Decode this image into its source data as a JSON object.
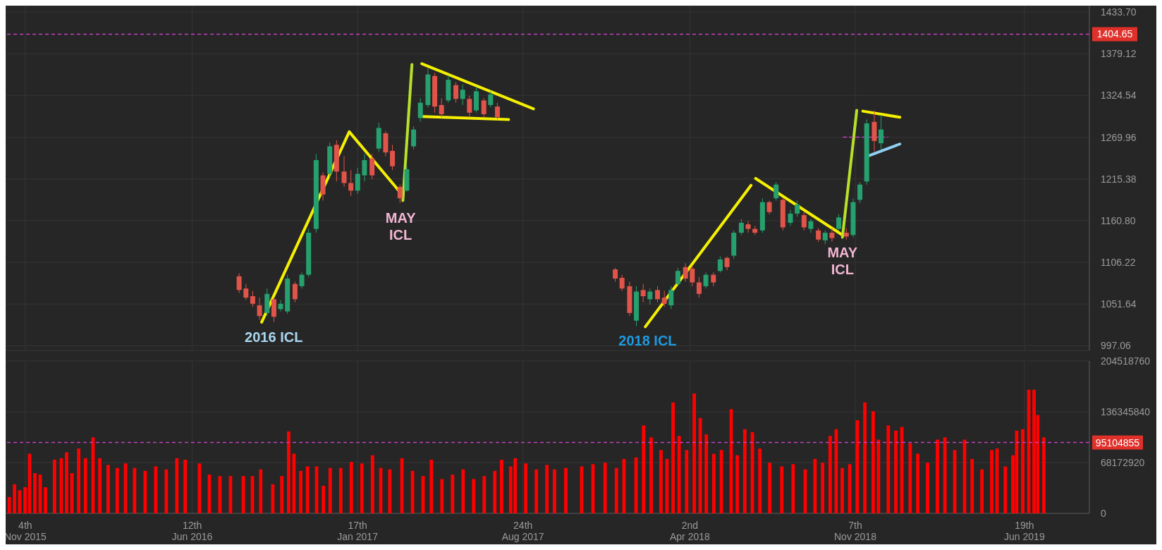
{
  "chart_data": [
    {
      "type": "candlestick",
      "tick_labels": "y",
      "grid": true,
      "marker": "none",
      "xlim": [
        "2015-10-09",
        "2019-09-13"
      ],
      "xticks": [
        {
          "value": "2015-11-04",
          "label": null
        },
        {
          "value": "2016-06-12",
          "label": null
        },
        {
          "value": "2017-01-17",
          "label": null
        },
        {
          "value": "2017-08-24",
          "label": null
        },
        {
          "value": "2018-04-02",
          "label": null
        },
        {
          "value": "2018-11-07",
          "label": null
        },
        {
          "value": "2019-06-19",
          "label": null
        }
      ],
      "ylim": [
        991,
        1442
      ],
      "yticks": [
        997.06,
        1051.64,
        1106.22,
        {
          "value": 1160.8,
          "label": "1160.80"
        },
        1215.38,
        1269.96,
        1324.54,
        1379.12,
        {
          "value": 1433.7,
          "label": "1433.70"
        }
      ],
      "x": [
        "2016-08-13",
        "2016-08-22",
        "2016-08-31",
        "2016-09-09",
        "2016-09-19",
        "2016-09-28",
        "2016-10-07",
        "2016-10-16",
        "2016-10-26",
        "2016-11-04",
        "2016-11-13",
        "2016-11-23",
        "2016-12-02",
        "2016-12-11",
        "2016-12-20",
        "2016-12-30",
        "2017-01-08",
        "2017-01-17",
        "2017-01-26",
        "2017-02-05",
        "2017-02-14",
        "2017-02-23",
        "2017-03-04",
        "2017-03-14",
        "2017-03-23",
        "2017-04-01",
        "2017-04-10",
        "2017-04-20",
        "2017-04-29",
        "2017-05-08",
        "2017-05-17",
        "2017-05-27",
        "2017-06-05",
        "2017-06-14",
        "2017-06-23",
        "2017-07-03",
        "2017-07-12",
        "2017-07-21",
        "2017-12-24",
        "2018-01-02",
        "2018-01-12",
        "2018-01-21",
        "2018-01-30",
        "2018-02-08",
        "2018-02-18",
        "2018-02-27",
        "2018-03-08",
        "2018-03-17",
        "2018-03-27",
        "2018-04-05",
        "2018-04-14",
        "2018-04-23",
        "2018-05-03",
        "2018-05-12",
        "2018-05-21",
        "2018-05-30",
        "2018-06-09",
        "2018-06-18",
        "2018-06-27",
        "2018-07-07",
        "2018-07-16",
        "2018-07-25",
        "2018-08-03",
        "2018-08-13",
        "2018-08-22",
        "2018-08-31",
        "2018-09-09",
        "2018-09-19",
        "2018-09-28",
        "2018-10-07",
        "2018-10-16",
        "2018-10-26",
        "2018-11-04",
        "2018-11-13",
        "2018-11-22",
        "2018-12-02",
        "2018-12-11"
      ],
      "ohlc": [
        [
          1088,
          1092,
          1066,
          1070
        ],
        [
          1072,
          1078,
          1057,
          1060
        ],
        [
          1062,
          1069,
          1048,
          1052
        ],
        [
          1050,
          1060,
          1031,
          1036
        ],
        [
          1040,
          1072,
          1036,
          1065
        ],
        [
          1058,
          1060,
          1028,
          1035
        ],
        [
          1045,
          1057,
          1042,
          1052
        ],
        [
          1042,
          1090,
          1039,
          1085
        ],
        [
          1078,
          1081,
          1054,
          1058
        ],
        [
          1075,
          1093,
          1072,
          1090
        ],
        [
          1090,
          1150,
          1087,
          1145
        ],
        [
          1150,
          1248,
          1145,
          1240
        ],
        [
          1220,
          1224,
          1187,
          1195
        ],
        [
          1222,
          1263,
          1218,
          1258
        ],
        [
          1260,
          1266,
          1212,
          1225
        ],
        [
          1225,
          1245,
          1205,
          1210
        ],
        [
          1210,
          1227,
          1193,
          1200
        ],
        [
          1200,
          1230,
          1196,
          1222
        ],
        [
          1220,
          1248,
          1212,
          1240
        ],
        [
          1242,
          1248,
          1215,
          1220
        ],
        [
          1255,
          1289,
          1251,
          1282
        ],
        [
          1275,
          1278,
          1245,
          1250
        ],
        [
          1252,
          1260,
          1227,
          1232
        ],
        [
          1205,
          1208,
          1184,
          1190
        ],
        [
          1200,
          1233,
          1199,
          1228
        ],
        [
          1258,
          1284,
          1254,
          1280
        ],
        [
          1295,
          1321,
          1290,
          1315
        ],
        [
          1312,
          1360,
          1309,
          1352
        ],
        [
          1350,
          1354,
          1302,
          1310
        ],
        [
          1312,
          1321,
          1296,
          1300
        ],
        [
          1318,
          1351,
          1315,
          1345
        ],
        [
          1338,
          1342,
          1315,
          1320
        ],
        [
          1320,
          1339,
          1312,
          1332
        ],
        [
          1320,
          1324,
          1296,
          1302
        ],
        [
          1305,
          1336,
          1302,
          1330
        ],
        [
          1318,
          1321,
          1296,
          1300
        ],
        [
          1312,
          1330,
          1309,
          1326
        ],
        [
          1310,
          1315,
          1293,
          1296
        ],
        [
          1097,
          1099,
          1081,
          1085
        ],
        [
          1086,
          1090,
          1069,
          1072
        ],
        [
          1075,
          1081,
          1036,
          1040
        ],
        [
          1030,
          1075,
          1023,
          1068
        ],
        [
          1070,
          1078,
          1054,
          1062
        ],
        [
          1058,
          1072,
          1051,
          1068
        ],
        [
          1070,
          1075,
          1054,
          1058
        ],
        [
          1060,
          1069,
          1048,
          1052
        ],
        [
          1050,
          1075,
          1045,
          1070
        ],
        [
          1078,
          1099,
          1075,
          1095
        ],
        [
          1100,
          1105,
          1081,
          1085
        ],
        [
          1098,
          1102,
          1075,
          1080
        ],
        [
          1080,
          1087,
          1060,
          1065
        ],
        [
          1075,
          1093,
          1072,
          1090
        ],
        [
          1090,
          1093,
          1075,
          1080
        ],
        [
          1095,
          1114,
          1093,
          1110
        ],
        [
          1112,
          1114,
          1096,
          1100
        ],
        [
          1115,
          1148,
          1111,
          1145
        ],
        [
          1145,
          1163,
          1142,
          1158
        ],
        [
          1156,
          1160,
          1145,
          1150
        ],
        [
          1150,
          1154,
          1142,
          1145
        ],
        [
          1148,
          1190,
          1145,
          1185
        ],
        [
          1185,
          1187,
          1169,
          1172
        ],
        [
          1190,
          1211,
          1187,
          1208
        ],
        [
          1188,
          1190,
          1148,
          1152
        ],
        [
          1158,
          1175,
          1154,
          1170
        ],
        [
          1170,
          1187,
          1166,
          1182
        ],
        [
          1168,
          1172,
          1148,
          1152
        ],
        [
          1150,
          1163,
          1145,
          1160
        ],
        [
          1148,
          1151,
          1133,
          1136
        ],
        [
          1135,
          1148,
          1130,
          1145
        ],
        [
          1145,
          1151,
          1133,
          1138
        ],
        [
          1150,
          1169,
          1148,
          1165
        ],
        [
          1145,
          1151,
          1136,
          1140
        ],
        [
          1142,
          1190,
          1139,
          1185
        ],
        [
          1188,
          1211,
          1184,
          1208
        ],
        [
          1212,
          1293,
          1208,
          1288
        ],
        [
          1290,
          1305,
          1251,
          1265
        ],
        [
          1262,
          1299,
          1254,
          1280
        ]
      ],
      "series": [
        {
          "type": "line",
          "color": "#f5f000",
          "x": [
            "2016-09-12",
            "2017-01-06",
            "2017-03-16"
          ],
          "values": [
            1028,
            1277,
            1196
          ]
        },
        {
          "type": "line",
          "color": "#b8e02a",
          "x": [
            "2017-03-18",
            "2017-03-30"
          ],
          "values": [
            1187,
            1365
          ]
        },
        {
          "type": "line",
          "color": "#f5f000",
          "x": [
            "2017-04-12",
            "2017-09-07"
          ],
          "values": [
            1366,
            1307
          ]
        },
        {
          "type": "line",
          "color": "#f5f000",
          "x": [
            "2017-04-13",
            "2017-08-05"
          ],
          "values": [
            1297,
            1293
          ]
        },
        {
          "type": "line",
          "color": "#f5f000",
          "x": [
            "2018-02-02",
            "2018-06-22"
          ],
          "values": [
            1022,
            1207
          ]
        },
        {
          "type": "line",
          "color": "#f5f000",
          "x": [
            "2018-06-28",
            "2018-10-21"
          ],
          "values": [
            1216,
            1142
          ]
        },
        {
          "type": "line",
          "color": "#b8e02a",
          "x": [
            "2018-10-21",
            "2018-11-09"
          ],
          "values": [
            1139,
            1305
          ]
        },
        {
          "type": "line",
          "color": "#f5f000",
          "x": [
            "2018-11-17",
            "2019-01-05"
          ],
          "values": [
            1304,
            1296
          ]
        },
        {
          "type": "line",
          "color": "#8fd0f0",
          "x": [
            "2018-11-23",
            "2019-01-05"
          ],
          "values": [
            1245,
            1261
          ]
        },
        {
          "type": "line",
          "color": "#c040c0",
          "line_style": "dashed",
          "x": [
            "2018-10-22",
            "2018-12-20"
          ],
          "values": [
            1270,
            1270
          ]
        }
      ],
      "ref_lines": [
        {
          "axis": "y",
          "value": 1404.65,
          "label": "1404.65",
          "color": "#c040c0",
          "line_style": "dashed"
        }
      ],
      "annotations": [
        {
          "text": "2016 ICL",
          "x": "2016-09-28",
          "y": 1028
        },
        {
          "text": "MAY\nICL",
          "x": "2017-03-15",
          "y": 1184
        },
        {
          "text": "2018 ICL",
          "x": "2018-02-05",
          "y": 1023
        },
        {
          "text": "MAY\nICL",
          "x": "2018-10-21",
          "y": 1139
        }
      ]
    },
    {
      "type": "bar",
      "color": "#ff0000",
      "grid": true,
      "xlim": [
        "2015-10-09",
        "2019-09-13"
      ],
      "xticks": [
        {
          "value": "2015-11-04",
          "label": "4th\nNov 2015"
        },
        {
          "value": "2016-06-12",
          "label": "12th\nJun 2016"
        },
        {
          "value": "2017-01-17",
          "label": "17th\nJan 2017"
        },
        {
          "value": "2017-08-24",
          "label": "24th\nAug 2017"
        },
        {
          "value": "2018-04-02",
          "label": "2nd\nApr 2018"
        },
        {
          "value": "2018-11-07",
          "label": "7th\nNov 2018"
        },
        {
          "value": "2019-06-19",
          "label": "19th\nJun 2019"
        }
      ],
      "ylim": [
        0,
        204518760
      ],
      "yticks": [
        0,
        68172920,
        136345840,
        204518760
      ],
      "ref_lines": [
        {
          "axis": "y",
          "value": 95104855,
          "label": "95104855",
          "color": "#c040c0",
          "line_style": "dashed"
        }
      ],
      "x": [
        "2015-10-14",
        "2015-10-21",
        "2015-10-28",
        "2015-11-04",
        "2015-11-10",
        "2015-11-17",
        "2015-11-24",
        "2015-12-01",
        "2015-12-13",
        "2015-12-22",
        "2015-12-29",
        "2016-01-05",
        "2016-01-14",
        "2016-01-23",
        "2016-02-02",
        "2016-02-11",
        "2016-02-22",
        "2016-03-05",
        "2016-03-16",
        "2016-03-28",
        "2016-04-11",
        "2016-04-25",
        "2016-05-09",
        "2016-05-23",
        "2016-06-03",
        "2016-06-22",
        "2016-07-05",
        "2016-07-19",
        "2016-08-02",
        "2016-08-19",
        "2016-08-31",
        "2016-09-11",
        "2016-09-27",
        "2016-10-09",
        "2016-10-18",
        "2016-10-25",
        "2016-11-03",
        "2016-11-12",
        "2016-11-24",
        "2016-12-03",
        "2016-12-12",
        "2016-12-26",
        "2017-01-09",
        "2017-01-23",
        "2017-02-06",
        "2017-02-17",
        "2017-03-01",
        "2017-03-17",
        "2017-03-31",
        "2017-04-14",
        "2017-04-25",
        "2017-05-09",
        "2017-05-23",
        "2017-06-06",
        "2017-06-20",
        "2017-07-04",
        "2017-07-18",
        "2017-07-27",
        "2017-08-08",
        "2017-08-14",
        "2017-08-28",
        "2017-09-11",
        "2017-09-25",
        "2017-10-05",
        "2017-10-20",
        "2017-11-10",
        "2017-11-25",
        "2017-12-11",
        "2017-12-26",
        "2018-01-05",
        "2018-01-21",
        "2018-01-31",
        "2018-02-10",
        "2018-02-23",
        "2018-03-03",
        "2018-03-11",
        "2018-03-19",
        "2018-03-29",
        "2018-04-08",
        "2018-04-16",
        "2018-04-24",
        "2018-05-04",
        "2018-05-14",
        "2018-05-27",
        "2018-06-04",
        "2018-06-14",
        "2018-06-24",
        "2018-07-04",
        "2018-07-17",
        "2018-08-02",
        "2018-08-17",
        "2018-09-02",
        "2018-09-15",
        "2018-09-25",
        "2018-10-05",
        "2018-10-13",
        "2018-10-21",
        "2018-10-31",
        "2018-11-10",
        "2018-11-20",
        "2018-12-01",
        "2018-12-08",
        "2018-12-21",
        "2018-12-31",
        "2019-01-08",
        "2019-01-19",
        "2019-01-29",
        "2019-02-11",
        "2019-02-24",
        "2019-03-06",
        "2019-03-19",
        "2019-04-01",
        "2019-04-11",
        "2019-04-24",
        "2019-05-07",
        "2019-05-14",
        "2019-05-25",
        "2019-06-04",
        "2019-06-09",
        "2019-06-17",
        "2019-06-25",
        "2019-07-02",
        "2019-07-07",
        "2019-07-15"
      ],
      "values": [
        22000000,
        39000000,
        31000000,
        35000000,
        80000000,
        54000000,
        52000000,
        35000000,
        72000000,
        74000000,
        82000000,
        54000000,
        87000000,
        74000000,
        102000000,
        74000000,
        65000000,
        61000000,
        67000000,
        61000000,
        57000000,
        63000000,
        59000000,
        74000000,
        72000000,
        67000000,
        52000000,
        50000000,
        50000000,
        50000000,
        50000000,
        59000000,
        39000000,
        50000000,
        110000000,
        80000000,
        57000000,
        63000000,
        63000000,
        37000000,
        61000000,
        61000000,
        69000000,
        67000000,
        78000000,
        61000000,
        59000000,
        74000000,
        57000000,
        50000000,
        72000000,
        46000000,
        52000000,
        59000000,
        46000000,
        50000000,
        57000000,
        72000000,
        63000000,
        74000000,
        67000000,
        59000000,
        65000000,
        59000000,
        61000000,
        63000000,
        66000000,
        68000000,
        61000000,
        73000000,
        75000000,
        118000000,
        102000000,
        85000000,
        73000000,
        149000000,
        104000000,
        85000000,
        161000000,
        128000000,
        106000000,
        80000000,
        85000000,
        140000000,
        78000000,
        113000000,
        109000000,
        87000000,
        68000000,
        63000000,
        66000000,
        59000000,
        73000000,
        68000000,
        104000000,
        113000000,
        61000000,
        66000000,
        125000000,
        149000000,
        137000000,
        99000000,
        118000000,
        111000000,
        116000000,
        94000000,
        80000000,
        68000000,
        99000000,
        102000000,
        85000000,
        99000000,
        73000000,
        59000000,
        85000000,
        87000000,
        63000000,
        78000000,
        111000000,
        113000000,
        166000000,
        166000000,
        132000000,
        102000000
      ]
    }
  ]
}
